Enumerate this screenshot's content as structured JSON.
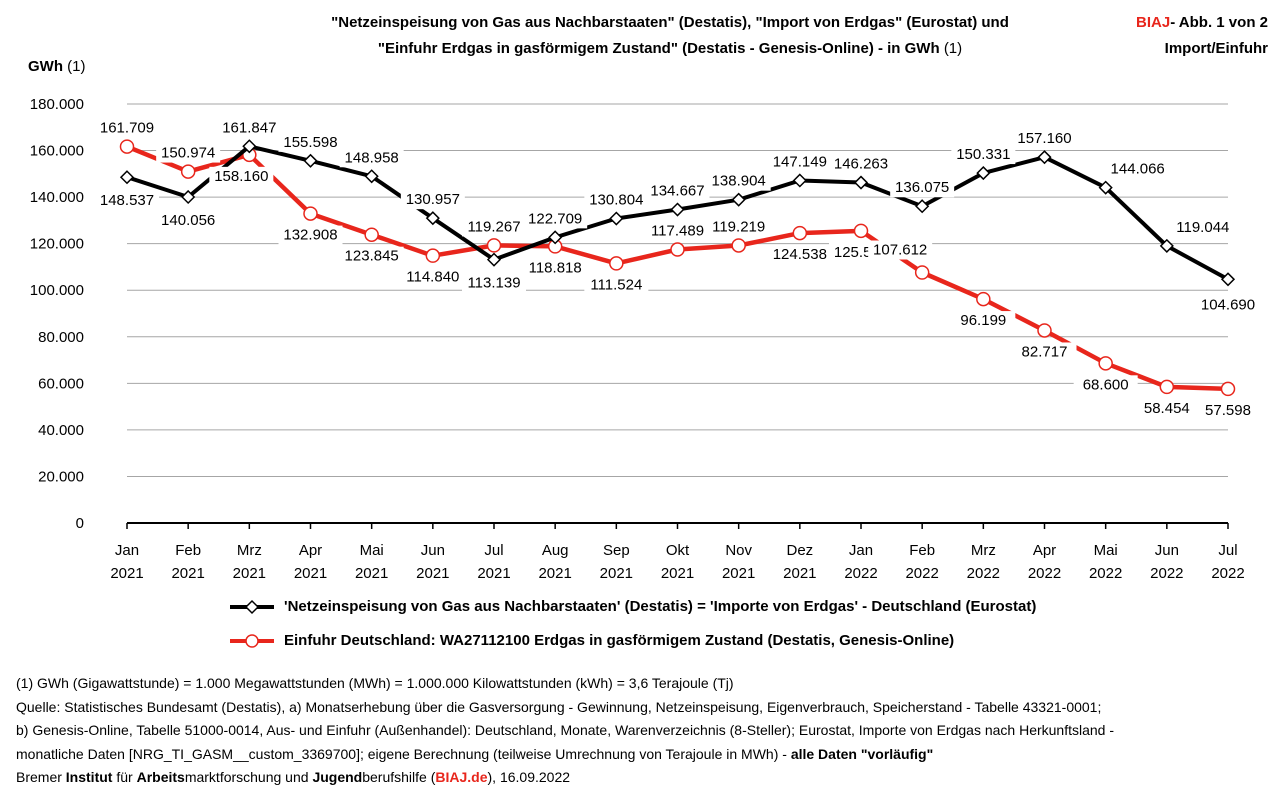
{
  "header": {
    "title_line1": "\"Netzeinspeisung von Gas aus Nachbarstaaten\" (Destatis), \"Import von Erdgas\" (Eurostat) und",
    "title_line2": "\"Einfuhr Erdgas in gasförmigem Zustand\" (Destatis - Genesis-Online) - in GWh",
    "title_note": "(1)",
    "brand_red": "BIAJ",
    "brand_rest": "- Abb. 1 von 2",
    "brand_line2": "Import/Einfuhr"
  },
  "colors": {
    "black_series": "#000000",
    "red_series": "#e8261c",
    "grid": "#a6a6a6"
  },
  "chart_data": {
    "type": "line",
    "ylabel": "GWh",
    "ylabel_note": "(1)",
    "ylim": [
      0,
      180000
    ],
    "yticks": [
      0,
      20000,
      40000,
      60000,
      80000,
      100000,
      120000,
      140000,
      160000,
      180000
    ],
    "ytick_labels": [
      "0",
      "20.000",
      "40.000",
      "60.000",
      "80.000",
      "100.000",
      "120.000",
      "140.000",
      "160.000",
      "180.000"
    ],
    "categories": [
      [
        "Jan",
        "2021"
      ],
      [
        "Feb",
        "2021"
      ],
      [
        "Mrz",
        "2021"
      ],
      [
        "Apr",
        "2021"
      ],
      [
        "Mai",
        "2021"
      ],
      [
        "Jun",
        "2021"
      ],
      [
        "Jul",
        "2021"
      ],
      [
        "Aug",
        "2021"
      ],
      [
        "Sep",
        "2021"
      ],
      [
        "Okt",
        "2021"
      ],
      [
        "Nov",
        "2021"
      ],
      [
        "Dez",
        "2021"
      ],
      [
        "Jan",
        "2022"
      ],
      [
        "Feb",
        "2022"
      ],
      [
        "Mrz",
        "2022"
      ],
      [
        "Apr",
        "2022"
      ],
      [
        "Mai",
        "2022"
      ],
      [
        "Jun",
        "2022"
      ],
      [
        "Jul",
        "2022"
      ]
    ],
    "grid": true,
    "series": [
      {
        "name": "'Netzeinspeisung von Gas aus Nachbarstaaten' (Destatis) = 'Importe von Erdgas' -  Deutschland (Eurostat)",
        "color": "#000000",
        "marker": "diamond",
        "values": [
          148537,
          140056,
          161847,
          155598,
          148958,
          130957,
          113139,
          122709,
          130804,
          134667,
          138904,
          147149,
          146263,
          136075,
          150331,
          157160,
          144066,
          119044,
          104690
        ],
        "labels": [
          "148.537",
          "140.056",
          "161.847",
          "155.598",
          "148.958",
          "130.957",
          "113.139",
          "122.709",
          "130.804",
          "134.667",
          "138.904",
          "147.149",
          "146.263",
          "136.075",
          "150.331",
          "157.160",
          "144.066",
          "119.044",
          "104.690"
        ]
      },
      {
        "name": "Einfuhr Deutschland:  WA27112100 Erdgas in gasförmigem Zustand (Destatis, Genesis-Online)",
        "color": "#e8261c",
        "marker": "circle",
        "values": [
          161709,
          150974,
          158160,
          132908,
          123845,
          114840,
          119267,
          118818,
          111524,
          117489,
          119219,
          124538,
          125500,
          107612,
          96199,
          82717,
          68600,
          58454,
          57598
        ],
        "labels": [
          "161.709",
          "150.974",
          "158.160",
          "132.908",
          "123.845",
          "114.840",
          "119.267",
          "118.818",
          "111.524",
          "117.489",
          "119.219",
          "124.538",
          "125.500",
          "107.612",
          "96.199",
          "82.717",
          "68.600",
          "58.454",
          "57.598"
        ]
      }
    ]
  },
  "notes": {
    "line1": "(1) GWh (Gigawattstunde) = 1.000 Megawattstunden (MWh)  = 1.000.000 Kilowattstunden (kWh) = 3,6 Terajoule (Tj)",
    "line2": "Quelle: Statistisches Bundesamt (Destatis), a) Monatserhebung über die Gasversorgung - Gewinnung, Netzeinspeisung, Eigenverbrauch, Speicherstand - Tabelle 43321-0001;",
    "line3": "b) Genesis-Online, Tabelle 51000-0014, Aus- und Einfuhr (Außenhandel): Deutschland, Monate, Warenverzeichnis (8-Steller); Eurostat, Importe von Erdgas nach Herkunftsland -",
    "line4_a": "monatliche Daten [NRG_TI_GASM__custom_3369700]; eigene Berechnung (teilweise Umrechnung von Terajoule in MWh) - ",
    "line4_b": "alle Daten \"vorläufig\"",
    "line5_a": "Bremer ",
    "line5_b": "Institut",
    "line5_c": " für ",
    "line5_d": "Arbeits",
    "line5_e": "marktforschung und ",
    "line5_f": "Jugend",
    "line5_g": "berufshilfe (",
    "line5_h": "BIAJ.de",
    "line5_i": "), 16.09.2022"
  }
}
